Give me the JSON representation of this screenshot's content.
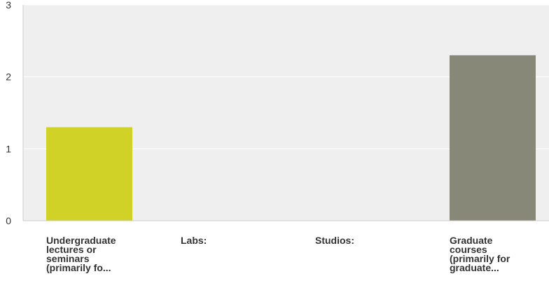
{
  "chart_data": {
    "type": "bar",
    "categories": [
      "Undergraduate\nlectures or\nseminars\n(primarily fo...",
      "Labs:",
      "Studios:",
      "Graduate\ncourses\n(primarily for\ngraduate..."
    ],
    "values": [
      1.3,
      0,
      0,
      2.3
    ],
    "colors": [
      "#d1d228",
      "#d1d228",
      "#d1d228",
      "#878878"
    ],
    "ylim": [
      0,
      3
    ],
    "yticks": [
      "0",
      "1",
      "2",
      "3"
    ],
    "grid": true,
    "title": "",
    "xlabel": "",
    "ylabel": ""
  }
}
